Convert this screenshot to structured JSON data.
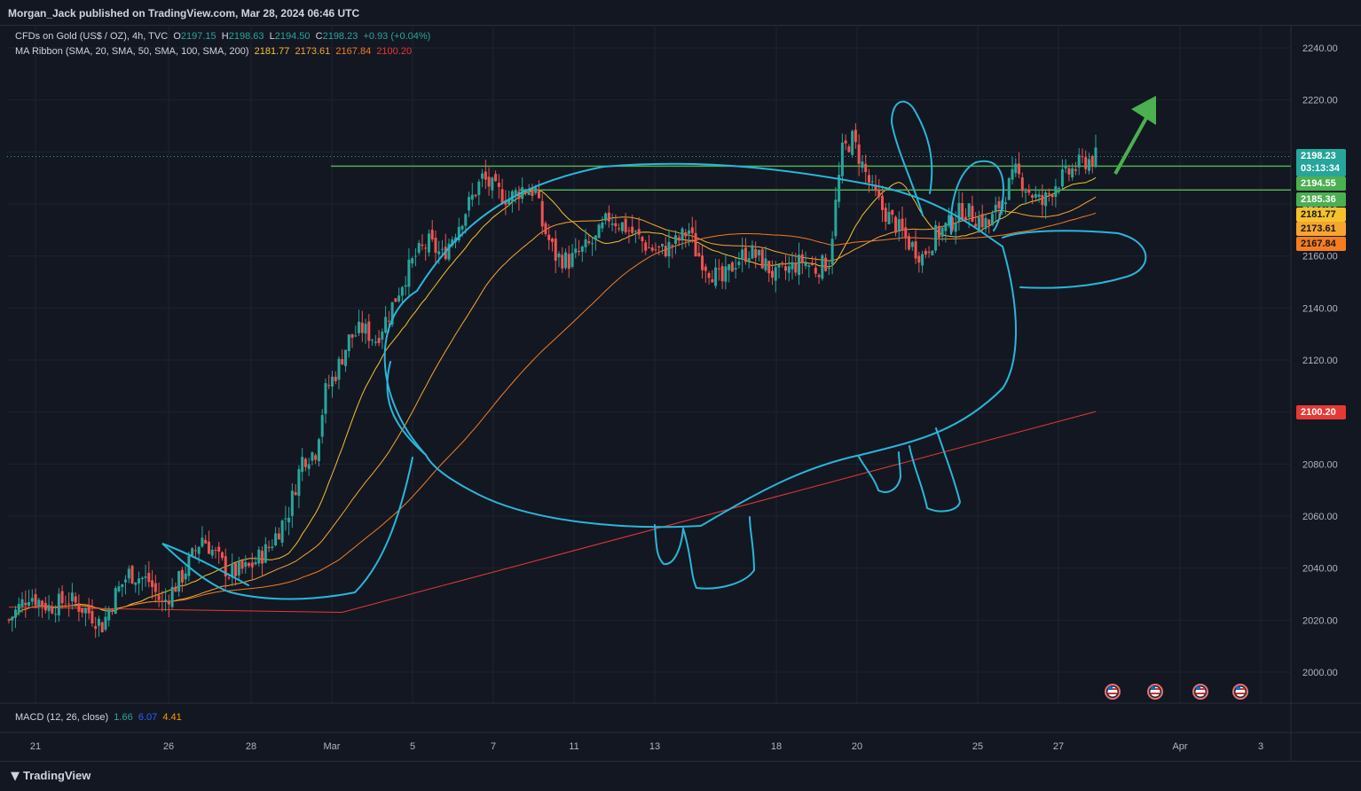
{
  "header": {
    "publisher": "Morgan_Jack published on TradingView.com, Mar 28, 2024 06:46 UTC"
  },
  "legend": {
    "symbol": "CFDs on Gold (US$ / OZ), 4h, TVC",
    "o_label": "O",
    "o": "2197.15",
    "h_label": "H",
    "h": "2198.63",
    "l_label": "L",
    "l": "2194.50",
    "c_label": "C",
    "c": "2198.23",
    "change": "+0.93 (+0.04%)",
    "ma_label": "MA Ribbon (SMA, 20, SMA, 50, SMA, 100, SMA, 200)",
    "ma20": "2181.77",
    "ma50": "2173.61",
    "ma100": "2167.84",
    "ma200": "2100.20"
  },
  "macd": {
    "label": "MACD (12, 26, close)",
    "v1": "1.66",
    "v2": "6.07",
    "v3": "4.41"
  },
  "price_tags": {
    "last": "2198.23",
    "countdown": "03:13:34",
    "t1": "2194.55",
    "t2": "2185.36",
    "ma20": "2181.77",
    "ma50": "2173.61",
    "ma100": "2167.84",
    "ma200": "2100.20"
  },
  "footer": {
    "brand": "TradingView"
  },
  "colors": {
    "up": "#26a69a",
    "down": "#ef5350",
    "ma20": "#f5c22b",
    "ma50": "#f7a531",
    "ma100": "#f57c1f",
    "ma200": "#e53935",
    "drawing": "#29b6d8",
    "levels": "#4caf50",
    "arrow": "#4caf50"
  },
  "chart_data": {
    "type": "candlestick",
    "ylim": [
      1990,
      2245
    ],
    "y_ticks": [
      "2240.00",
      "2220.00",
      "2200.00",
      "2180.00",
      "2160.00",
      "2140.00",
      "2120.00",
      "2100.00",
      "2080.00",
      "2060.00",
      "2040.00",
      "2020.00",
      "2000.00"
    ],
    "x_ticks": [
      "21",
      "26",
      "28",
      "Mar",
      "5",
      "7",
      "11",
      "13",
      "18",
      "20",
      "25",
      "27",
      "Apr",
      "3"
    ],
    "horizontal_levels": [
      2194.55,
      2185.36
    ],
    "ma_end_values": {
      "sma20": 2181.77,
      "sma50": 2173.61,
      "sma100": 2167.84,
      "sma200": 2100.2
    },
    "close_path": [
      [
        0,
        2020
      ],
      [
        6,
        2030
      ],
      [
        12,
        2025
      ],
      [
        18,
        2028
      ],
      [
        24,
        2023
      ],
      [
        28,
        2018
      ],
      [
        32,
        2030
      ],
      [
        36,
        2038
      ],
      [
        42,
        2035
      ],
      [
        46,
        2026
      ],
      [
        52,
        2037
      ],
      [
        58,
        2052
      ],
      [
        62,
        2045
      ],
      [
        66,
        2038
      ],
      [
        72,
        2040
      ],
      [
        78,
        2048
      ],
      [
        84,
        2062
      ],
      [
        88,
        2082
      ],
      [
        92,
        2085
      ],
      [
        95,
        2108
      ],
      [
        98,
        2115
      ],
      [
        102,
        2128
      ],
      [
        106,
        2132
      ],
      [
        110,
        2128
      ],
      [
        114,
        2138
      ],
      [
        118,
        2150
      ],
      [
        122,
        2160
      ],
      [
        126,
        2165
      ],
      [
        130,
        2160
      ],
      [
        134,
        2170
      ],
      [
        138,
        2180
      ],
      [
        142,
        2190
      ],
      [
        146,
        2185
      ],
      [
        150,
        2182
      ],
      [
        154,
        2186
      ],
      [
        158,
        2185
      ],
      [
        160,
        2172
      ],
      [
        164,
        2160
      ],
      [
        168,
        2158
      ],
      [
        172,
        2162
      ],
      [
        176,
        2166
      ],
      [
        180,
        2175
      ],
      [
        184,
        2172
      ],
      [
        188,
        2168
      ],
      [
        192,
        2163
      ],
      [
        196,
        2162
      ],
      [
        200,
        2165
      ],
      [
        204,
        2170
      ],
      [
        206,
        2162
      ],
      [
        210,
        2155
      ],
      [
        214,
        2150
      ],
      [
        218,
        2158
      ],
      [
        222,
        2162
      ],
      [
        226,
        2158
      ],
      [
        230,
        2152
      ],
      [
        234,
        2155
      ],
      [
        238,
        2158
      ],
      [
        242,
        2155
      ],
      [
        246,
        2158
      ],
      [
        248,
        2180
      ],
      [
        250,
        2200
      ],
      [
        253,
        2205
      ],
      [
        256,
        2195
      ],
      [
        259,
        2185
      ],
      [
        262,
        2178
      ],
      [
        266,
        2172
      ],
      [
        270,
        2165
      ],
      [
        274,
        2160
      ],
      [
        278,
        2168
      ],
      [
        282,
        2172
      ],
      [
        286,
        2178
      ],
      [
        290,
        2175
      ],
      [
        294,
        2172
      ],
      [
        298,
        2182
      ],
      [
        302,
        2192
      ],
      [
        306,
        2185
      ],
      [
        310,
        2180
      ],
      [
        314,
        2188
      ],
      [
        318,
        2192
      ],
      [
        322,
        2196
      ],
      [
        326,
        2198
      ]
    ]
  }
}
